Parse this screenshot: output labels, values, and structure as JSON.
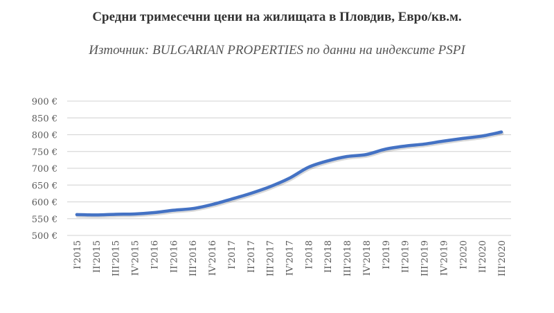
{
  "title": "Средни тримесечни цени на жилищата в Пловдив, Евро/кв.м.",
  "subtitle": "Източник: BULGARIAN PROPERTIES по данни на индексите PSPI",
  "chart_data": {
    "type": "line",
    "title": "Средни тримесечни цени на жилищата в Пловдив, Евро/кв.м.",
    "subtitle": "Източник: BULGARIAN PROPERTIES по данни на индексите PSPI",
    "categories": [
      "I'2015",
      "II'2015",
      "III'2015",
      "IV'2015",
      "I'2016",
      "II'2016",
      "III'2016",
      "IV'2016",
      "I'2017",
      "II'2017",
      "III'2017",
      "IV'2017",
      "I'2018",
      "II'2018",
      "III'2018",
      "IV'2018",
      "I'2019",
      "II'2019",
      "III'2019",
      "IV'2019",
      "I'2020",
      "II'2020",
      "III'2020"
    ],
    "series": [
      {
        "values": [
          562,
          561,
          563,
          564,
          568,
          575,
          580,
          592,
          608,
          625,
          645,
          670,
          703,
          722,
          735,
          741,
          757,
          766,
          772,
          781,
          789,
          796,
          808
        ]
      }
    ],
    "ylim": [
      500,
      900
    ],
    "yticks": [
      500,
      550,
      600,
      650,
      700,
      750,
      800,
      850,
      900
    ],
    "ytick_labels": [
      "500 €",
      "550 €",
      "600 €",
      "650 €",
      "700 €",
      "750 €",
      "800 €",
      "850 €",
      "900 €"
    ],
    "grid": true,
    "legend": "none",
    "colors": {
      "line": "#4472C4",
      "grid": "#D9D9D9"
    }
  }
}
